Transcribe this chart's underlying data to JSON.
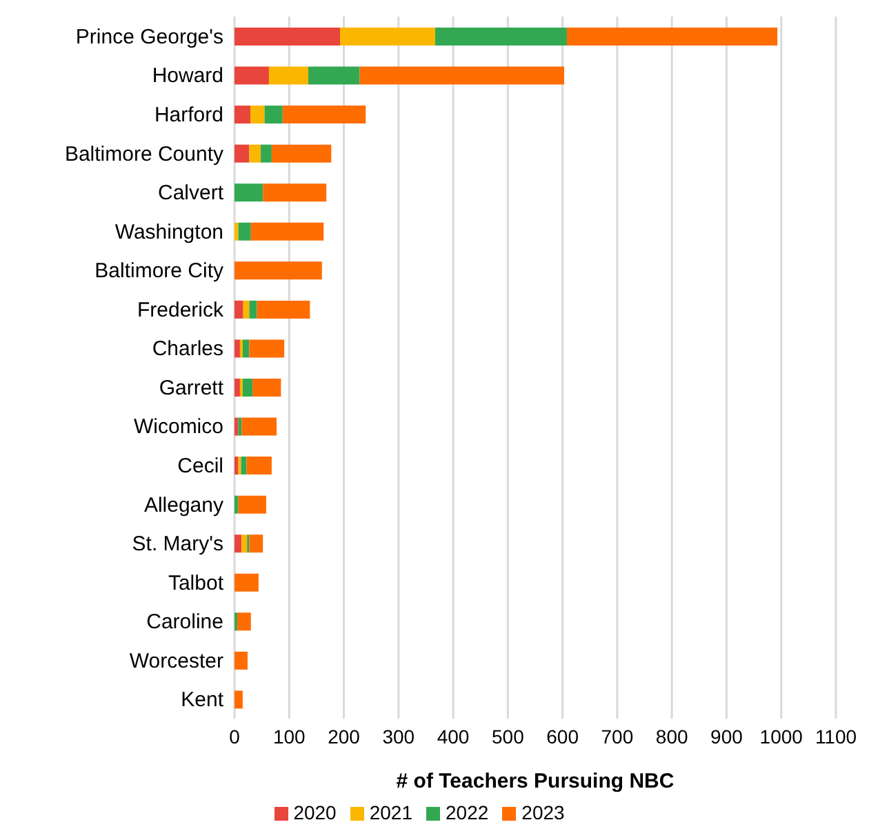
{
  "chart_data": {
    "type": "bar",
    "orientation": "horizontal",
    "stacked": true,
    "xlabel": "# of Teachers Pursuing NBC",
    "categories": [
      "Prince George's",
      "Howard",
      "Harford",
      "Baltimore County",
      "Calvert",
      "Washington",
      "Baltimore City",
      "Frederick",
      "Charles",
      "Garrett",
      "Wicomico",
      "Cecil",
      "Allegany",
      "St. Mary's",
      "Talbot",
      "Caroline",
      "Worcester",
      "Kent"
    ],
    "series": [
      {
        "name": "2020",
        "color": "#e8453c",
        "values": [
          193,
          63,
          29,
          27,
          0,
          0,
          0,
          16,
          10,
          10,
          7,
          7,
          0,
          13,
          0,
          0,
          0,
          0
        ]
      },
      {
        "name": "2021",
        "color": "#fbb700",
        "values": [
          174,
          72,
          26,
          21,
          0,
          7,
          0,
          11,
          5,
          5,
          0,
          5,
          0,
          10,
          0,
          0,
          0,
          0
        ]
      },
      {
        "name": "2022",
        "color": "#33a852",
        "values": [
          241,
          94,
          33,
          20,
          52,
          23,
          0,
          14,
          12,
          18,
          6,
          10,
          7,
          4,
          0,
          5,
          0,
          0
        ]
      },
      {
        "name": "2023",
        "color": "#ff6d00",
        "values": [
          385,
          374,
          152,
          109,
          116,
          133,
          160,
          97,
          64,
          52,
          64,
          46,
          51,
          25,
          44,
          25,
          24,
          15
        ]
      }
    ],
    "xlim": [
      0,
      1100
    ],
    "xticks": [
      0,
      100,
      200,
      300,
      400,
      500,
      600,
      700,
      800,
      900,
      1000,
      1100
    ],
    "grid": "x",
    "legend": "bottom"
  }
}
